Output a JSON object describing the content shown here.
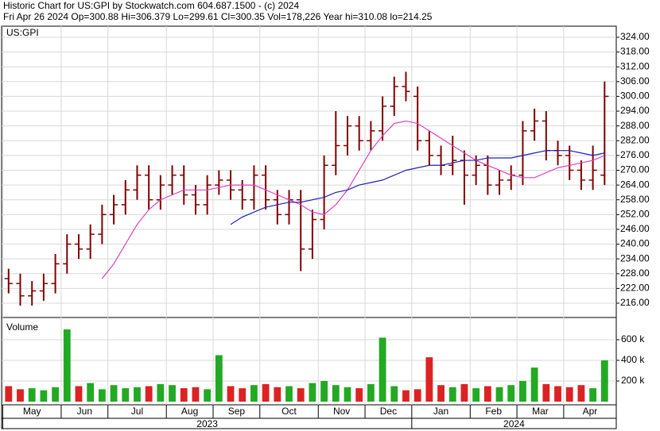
{
  "chart_data": {
    "type": "ohlc",
    "title": "Historic Chart for US:GPI by Stockwatch.com 604.687.1500 - (c) 2024",
    "subtitle": "Fri Apr 26 2024  Op=300.88  Hi=306.379  Lo=299.61  Cl=300.35  Vol=178,226  Year hi=310.08  lo=214.25",
    "symbol": "US:GPI",
    "bar_color": "#800000",
    "open": [
      226,
      224,
      219,
      221,
      224,
      232,
      240,
      238,
      244,
      252,
      256,
      262,
      268,
      258,
      264,
      268,
      260,
      256,
      264,
      266,
      262,
      258,
      268,
      258,
      252,
      258,
      238,
      250,
      272,
      280,
      288,
      282,
      286,
      296,
      304,
      300,
      282,
      276,
      272,
      274,
      268,
      272,
      264,
      266,
      268,
      286,
      290,
      278,
      276,
      270,
      266,
      268
    ],
    "high": [
      230,
      228,
      225,
      228,
      236,
      244,
      244,
      248,
      256,
      260,
      266,
      272,
      272,
      268,
      272,
      272,
      264,
      268,
      270,
      270,
      266,
      272,
      272,
      262,
      262,
      262,
      254,
      276,
      294,
      292,
      292,
      290,
      300,
      308,
      310,
      304,
      286,
      280,
      284,
      278,
      276,
      276,
      270,
      272,
      290,
      295,
      294,
      282,
      280,
      274,
      280,
      306
    ],
    "low": [
      220,
      215,
      215,
      217,
      220,
      228,
      234,
      234,
      240,
      248,
      252,
      258,
      254,
      254,
      260,
      256,
      252,
      252,
      260,
      258,
      254,
      254,
      254,
      248,
      248,
      229,
      234,
      246,
      268,
      276,
      278,
      278,
      282,
      292,
      298,
      278,
      272,
      268,
      268,
      256,
      264,
      260,
      260,
      262,
      264,
      282,
      274,
      272,
      266,
      262,
      262,
      264
    ],
    "close": [
      224,
      219,
      221,
      224,
      232,
      240,
      238,
      244,
      252,
      256,
      262,
      268,
      258,
      264,
      268,
      260,
      256,
      264,
      266,
      262,
      258,
      268,
      258,
      252,
      258,
      238,
      250,
      272,
      280,
      288,
      282,
      286,
      296,
      304,
      302,
      282,
      276,
      272,
      274,
      268,
      272,
      264,
      266,
      268,
      286,
      290,
      278,
      276,
      270,
      266,
      270,
      300
    ],
    "moving_averages": [
      {
        "color": "#e040c0",
        "values": [
          null,
          null,
          null,
          null,
          null,
          null,
          null,
          null,
          226,
          232,
          240,
          248,
          254,
          258,
          260,
          262,
          262,
          262,
          263,
          264,
          264,
          264,
          262,
          260,
          258,
          256,
          253,
          252,
          256,
          262,
          270,
          278,
          284,
          289,
          290,
          289,
          286,
          283,
          280,
          277,
          274,
          272,
          270,
          268,
          267,
          267,
          269,
          271,
          272,
          273,
          274,
          276
        ]
      },
      {
        "color": "#2020b0",
        "values": [
          null,
          null,
          null,
          null,
          null,
          null,
          null,
          null,
          null,
          null,
          null,
          null,
          null,
          null,
          null,
          null,
          null,
          null,
          null,
          248,
          251,
          253,
          255,
          256,
          257,
          257,
          258,
          259,
          261,
          262,
          264,
          265,
          266,
          268,
          270,
          271,
          272,
          272,
          273,
          274,
          274,
          275,
          275,
          275,
          276,
          277,
          278,
          278,
          278,
          277,
          276,
          277
        ]
      }
    ],
    "xlim": [
      -0.6,
      52
    ],
    "ylim": [
      210.2,
      328.5
    ],
    "yticks": [
      {
        "value": 216,
        "label": "216.00"
      },
      {
        "value": 222,
        "label": "222.00"
      },
      {
        "value": 228,
        "label": "228.00"
      },
      {
        "value": 234,
        "label": "234.00"
      },
      {
        "value": 240,
        "label": "240.00"
      },
      {
        "value": 246,
        "label": "246.00"
      },
      {
        "value": 252,
        "label": "252.00"
      },
      {
        "value": 258,
        "label": "258.00"
      },
      {
        "value": 264,
        "label": "264.00"
      },
      {
        "value": 270,
        "label": "270.00"
      },
      {
        "value": 276,
        "label": "276.00"
      },
      {
        "value": 282,
        "label": "282.00"
      },
      {
        "value": 288,
        "label": "288.00"
      },
      {
        "value": 294,
        "label": "294.00"
      },
      {
        "value": 300,
        "label": "300.00"
      },
      {
        "value": 306,
        "label": "306.00"
      },
      {
        "value": 312,
        "label": "312.00"
      },
      {
        "value": 318,
        "label": "318.00"
      },
      {
        "value": 324,
        "label": "324.00"
      }
    ],
    "months": [
      {
        "value": 0,
        "label": "May"
      },
      {
        "value": 5,
        "label": "Jun"
      },
      {
        "value": 9,
        "label": "Jul"
      },
      {
        "value": 14,
        "label": "Aug"
      },
      {
        "value": 18,
        "label": "Sep"
      },
      {
        "value": 22,
        "label": "Oct"
      },
      {
        "value": 27,
        "label": "Nov"
      },
      {
        "value": 31,
        "label": "Dec"
      },
      {
        "value": 35,
        "label": "Jan"
      },
      {
        "value": 40,
        "label": "Feb"
      },
      {
        "value": 44,
        "label": "Mar"
      },
      {
        "value": 48,
        "label": "Apr"
      }
    ],
    "years": [
      {
        "value": 0,
        "label": "2023"
      },
      {
        "value": 35,
        "label": "2024"
      }
    ],
    "volume": {
      "label": "Volume",
      "up_color": "#22aa22",
      "down_color": "#dd2222",
      "values": [
        150000,
        120000,
        130000,
        110000,
        140000,
        700000,
        150000,
        180000,
        120000,
        160000,
        130000,
        140000,
        150000,
        170000,
        160000,
        130000,
        140000,
        120000,
        450000,
        150000,
        130000,
        160000,
        170000,
        140000,
        150000,
        130000,
        180000,
        200000,
        160000,
        140000,
        130000,
        170000,
        620000,
        150000,
        110000,
        120000,
        430000,
        160000,
        140000,
        170000,
        130000,
        150000,
        140000,
        160000,
        200000,
        330000,
        170000,
        150000,
        140000,
        160000,
        130000,
        400000
      ],
      "ylim": [
        0,
        800000
      ],
      "yticks": [
        {
          "value": 200000,
          "label": "200 k"
        },
        {
          "value": 400000,
          "label": "400 k"
        },
        {
          "value": 600000,
          "label": "600 k"
        }
      ]
    }
  }
}
